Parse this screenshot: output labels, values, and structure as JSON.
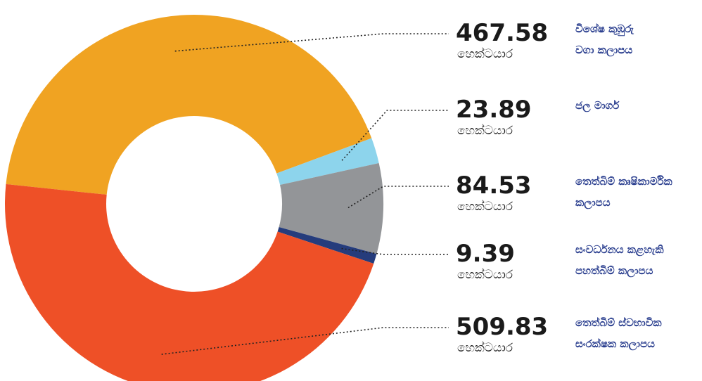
{
  "chart_data": {
    "type": "donut",
    "categories": [
      "විශේෂ කුඹුරු වගා කලාපය",
      "ජල මාර්ග",
      "තෙත්බිම් කෘෂිකාර්මික කලාපය",
      "සංවර්ධනය කළහැකි පහත්බිම් කලාපය",
      "තෙත්බිම් ස්වභාවික සංරක්ෂක කලාපය"
    ],
    "values": [
      467.58,
      23.89,
      84.53,
      9.39,
      509.83
    ],
    "colors": [
      "#f0a322",
      "#8dd4ec",
      "#939598",
      "#253c7c",
      "#ee5027"
    ],
    "unit": "හෙක්ටයාර"
  }
}
